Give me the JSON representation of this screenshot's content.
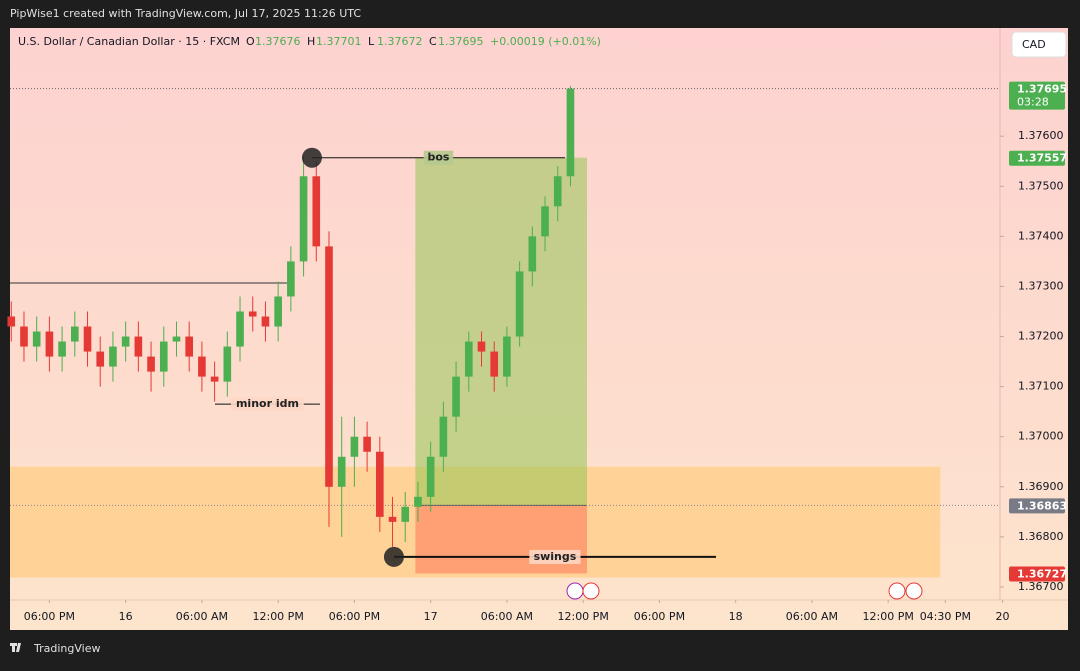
{
  "header": {
    "title": "PipWise1 created with TradingView.com, Jul 17, 2025 11:26 UTC",
    "brand": "TradingView"
  },
  "chart_data": {
    "type": "candlestick",
    "symbol": "U.S. Dollar / Canadian Dollar · 15 · FXCM",
    "ohlc_letters": [
      "O",
      "H",
      "L",
      "C"
    ],
    "last_bar": {
      "open": 1.37676,
      "high": 1.37701,
      "low": 1.37672
    },
    "change": "+0.00019 (+0.01%)",
    "currency": "CAD",
    "countdown": "03:28",
    "up_color": "#4caf50",
    "down_color": "#e53935",
    "x": [
      -9,
      -8,
      -7,
      -6,
      -5,
      -4,
      -3,
      -2,
      -1,
      0,
      1,
      2,
      3,
      4,
      5,
      6,
      7,
      8,
      9,
      10,
      11,
      12,
      13,
      14,
      15,
      16,
      17,
      18,
      19,
      20,
      21,
      22,
      23,
      24,
      25,
      26,
      27,
      28,
      29,
      30,
      31,
      32,
      33,
      34,
      35
    ],
    "open": [
      1.3724,
      1.3722,
      1.3718,
      1.3721,
      1.3716,
      1.3719,
      1.3722,
      1.3717,
      1.3714,
      1.3718,
      1.372,
      1.3716,
      1.3713,
      1.3719,
      1.372,
      1.3716,
      1.3712,
      1.3711,
      1.3718,
      1.3725,
      1.3724,
      1.3722,
      1.3728,
      1.3735,
      1.3752,
      1.3738,
      1.369,
      1.3696,
      1.37,
      1.3697,
      1.3684,
      1.3683,
      1.3686,
      1.3688,
      1.3696,
      1.3704,
      1.3712,
      1.3719,
      1.3717,
      1.3712,
      1.372,
      1.3733,
      1.374,
      1.3746,
      1.3752
    ],
    "high": [
      1.3727,
      1.3725,
      1.3724,
      1.3724,
      1.3722,
      1.3725,
      1.3725,
      1.372,
      1.3721,
      1.3723,
      1.3723,
      1.3719,
      1.3722,
      1.3723,
      1.3723,
      1.3719,
      1.3715,
      1.3721,
      1.3728,
      1.3728,
      1.3727,
      1.3731,
      1.3738,
      1.3756,
      1.3755,
      1.3741,
      1.3704,
      1.3704,
      1.3703,
      1.37,
      1.3688,
      1.3689,
      1.3691,
      1.3699,
      1.3707,
      1.3715,
      1.3721,
      1.3721,
      1.3719,
      1.3722,
      1.3735,
      1.3742,
      1.3748,
      1.3754,
      1.377
    ],
    "low": [
      1.3719,
      1.3715,
      1.3715,
      1.3713,
      1.3713,
      1.3716,
      1.3714,
      1.371,
      1.3711,
      1.3715,
      1.3713,
      1.3709,
      1.371,
      1.3716,
      1.3713,
      1.3709,
      1.3707,
      1.3708,
      1.3715,
      1.3721,
      1.3719,
      1.3719,
      1.3725,
      1.3732,
      1.3735,
      1.3682,
      1.368,
      1.369,
      1.3693,
      1.3681,
      1.3678,
      1.3679,
      1.3683,
      1.3685,
      1.3693,
      1.3701,
      1.3709,
      1.3714,
      1.3709,
      1.371,
      1.3718,
      1.373,
      1.3737,
      1.3743,
      1.375
    ],
    "close": [
      1.3722,
      1.3718,
      1.3721,
      1.3716,
      1.3719,
      1.3722,
      1.3717,
      1.3714,
      1.3718,
      1.372,
      1.3716,
      1.3713,
      1.3719,
      1.372,
      1.3716,
      1.3712,
      1.3711,
      1.3718,
      1.3725,
      1.3724,
      1.3722,
      1.3728,
      1.3735,
      1.3752,
      1.3738,
      1.369,
      1.3696,
      1.37,
      1.3697,
      1.3684,
      1.3683,
      1.3686,
      1.3688,
      1.3696,
      1.3704,
      1.3712,
      1.3719,
      1.3717,
      1.3712,
      1.372,
      1.3733,
      1.374,
      1.3746,
      1.3752,
      1.37695
    ],
    "xlim": [
      -9.1,
      68.8
    ],
    "xticks": [
      {
        "value": -6,
        "label": "06:00 PM"
      },
      0,
      {
        "value": 6,
        "label": "06:00 AM"
      },
      {
        "value": 12,
        "label": "12:00 PM"
      },
      {
        "value": 18,
        "label": "06:00 PM"
      },
      {
        "value": 24,
        "label": "17"
      },
      {
        "value": 30,
        "label": "06:00 AM"
      },
      {
        "value": 36,
        "label": "12:00 PM"
      },
      {
        "value": 42,
        "label": "06:00 PM"
      },
      {
        "value": 48,
        "label": "18"
      },
      {
        "value": 54,
        "label": "06:00 AM"
      },
      {
        "value": 60,
        "label": "12:00 PM"
      },
      {
        "value": 64.5,
        "label": "04:30 PM"
      },
      {
        "value": 69,
        "label": "20"
      }
    ],
    "xtick_day_label": "16",
    "ylim": [
      1.36674,
      1.37816
    ],
    "yticks": [
      {
        "value": 1.376,
        "label": "1.37600"
      },
      {
        "value": 1.375,
        "label": "1.37500"
      },
      {
        "value": 1.374,
        "label": "1.37400"
      },
      {
        "value": 1.373,
        "label": "1.37300"
      },
      {
        "value": 1.372,
        "label": "1.37200"
      },
      {
        "value": 1.371,
        "label": "1.37100"
      },
      {
        "value": 1.37,
        "label": "1.37000"
      },
      {
        "value": 1.369,
        "label": "1.36900"
      },
      {
        "value": 1.368,
        "label": "1.36800"
      },
      {
        "value": 1.367,
        "label": "1.36700"
      }
    ],
    "zone": {
      "low": 1.36719,
      "high": 1.3694,
      "x_start": -9.1,
      "x_end": 64.1,
      "color": "#ffcc80"
    },
    "position": {
      "entry": 1.36863,
      "target": 1.37557,
      "stop": 1.36727,
      "x_start": 22.8,
      "x_end": 36.3
    },
    "level": {
      "price": 1.37307,
      "x_start": -9.1,
      "x_end": 13.3
    },
    "annotations": [
      {
        "label": "bos",
        "price": 1.37557,
        "x_start": 14.66,
        "x_end": 34.57,
        "marker": true
      },
      {
        "label": "minor idm",
        "price": 1.37065,
        "x_start": 7.03,
        "x_end": 15.29,
        "marker": false
      },
      {
        "label": "swings",
        "price": 1.3676,
        "x_start": 21.11,
        "x_end": 46.45,
        "marker": true
      }
    ]
  }
}
